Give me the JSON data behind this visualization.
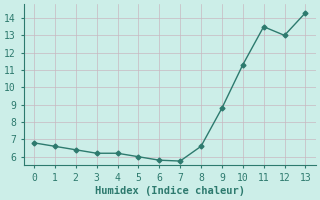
{
  "x": [
    0,
    1,
    2,
    3,
    4,
    5,
    6,
    7,
    8,
    9,
    10,
    11,
    12,
    13
  ],
  "y": [
    6.8,
    6.6,
    6.4,
    6.2,
    6.2,
    6.0,
    5.8,
    5.75,
    6.6,
    8.8,
    11.3,
    13.5,
    13.0,
    14.3
  ],
  "line_color": "#2d7a6e",
  "marker": "D",
  "marker_size": 2.5,
  "line_width": 1.0,
  "xlabel": "Humidex (Indice chaleur)",
  "xlabel_fontsize": 7.5,
  "background_color": "#cceee8",
  "grid_color": "#c8b8c0",
  "tick_color": "#2d7a6e",
  "xlim": [
    -0.5,
    13.5
  ],
  "ylim": [
    5.5,
    14.8
  ],
  "xticks": [
    0,
    1,
    2,
    3,
    4,
    5,
    6,
    7,
    8,
    9,
    10,
    11,
    12,
    13
  ],
  "yticks": [
    6,
    7,
    8,
    9,
    10,
    11,
    12,
    13,
    14
  ],
  "tick_fontsize": 7
}
